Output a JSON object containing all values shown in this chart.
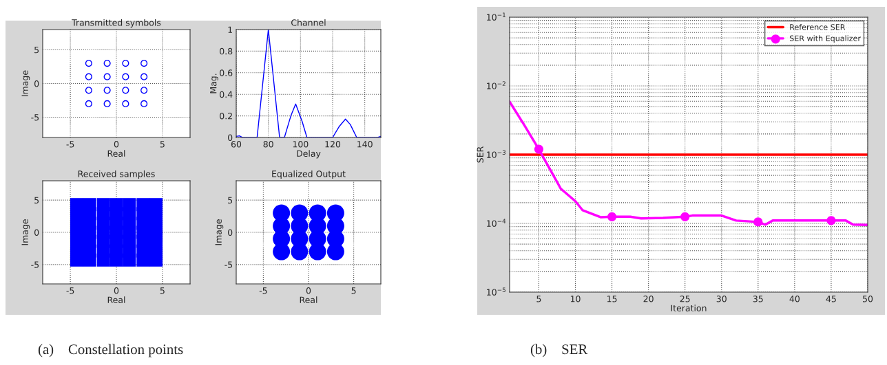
{
  "chart_data": [
    {
      "type": "scatter",
      "title": "Transmitted symbols",
      "xlabel": "Real",
      "ylabel": "Image",
      "xlim": [
        -8,
        8
      ],
      "ylim": [
        -8,
        8
      ],
      "xticks": [
        -5,
        0,
        5
      ],
      "yticks": [
        -5,
        0,
        5
      ],
      "grid": true,
      "marker": "circle",
      "annotations": [
        "(a)    Constellation points"
      ],
      "series": [
        {
          "color": "#0000ff",
          "x": [
            -3,
            -1,
            1,
            3,
            -3,
            -1,
            1,
            3,
            -3,
            -1,
            1,
            3,
            -3,
            -1,
            1,
            3
          ],
          "values": [
            3,
            3,
            3,
            3,
            1,
            1,
            1,
            1,
            -1,
            -1,
            -1,
            -1,
            -3,
            -3,
            -3,
            -3
          ]
        }
      ]
    },
    {
      "type": "line",
      "title": "Channel",
      "xlabel": "Delay",
      "ylabel": "Mag.",
      "xlim": [
        60,
        150
      ],
      "ylim": [
        0,
        1
      ],
      "xticks": [
        60,
        80,
        100,
        120,
        140
      ],
      "yticks": [
        0,
        0.2,
        0.4,
        0.6,
        0.8,
        1
      ],
      "grid": true,
      "series": [
        {
          "color": "#0000ff",
          "x": [
            60,
            62,
            64,
            73,
            76.5,
            80,
            83.5,
            87,
            90,
            94,
            97,
            101,
            104,
            120,
            124,
            128,
            131,
            135,
            148,
            150
          ],
          "values": [
            0.01,
            0.015,
            0,
            0,
            0.5,
            1.0,
            0.5,
            0,
            0,
            0.2,
            0.31,
            0.15,
            0,
            0,
            0.1,
            0.17,
            0.12,
            0,
            0,
            0.01
          ]
        }
      ]
    },
    {
      "type": "scatter",
      "title": "Received samples",
      "xlabel": "Real",
      "ylabel": "Image",
      "xlim": [
        -8,
        8
      ],
      "ylim": [
        -8,
        8
      ],
      "xticks": [
        -5,
        0,
        5
      ],
      "yticks": [
        -5,
        0,
        5
      ],
      "grid": true,
      "marker": "square",
      "series": [
        {
          "color": "#0000ff",
          "x": [
            -4.3,
            -2.9,
            -1.4,
            0,
            1.4,
            2.9,
            4.3,
            -4.3,
            -2.9,
            -1.4,
            0,
            1.4,
            2.9,
            4.3,
            -4.3,
            -2.9,
            -1.4,
            0,
            1.4,
            2.9,
            4.3,
            -4.3,
            -2.9,
            -1.4,
            0,
            1.4,
            2.9,
            4.3,
            -4.3,
            -2.9,
            -1.4,
            0,
            1.4,
            2.9,
            4.3,
            -4.3,
            -2.9,
            -1.4,
            0,
            1.4,
            2.9,
            4.3,
            -4.3,
            -2.9,
            -1.4,
            0,
            1.4,
            2.9,
            4.3
          ],
          "values": [
            4.3,
            4.3,
            4.3,
            4.3,
            4.3,
            4.3,
            4.3,
            2.9,
            2.9,
            2.9,
            2.9,
            2.9,
            2.9,
            2.9,
            1.4,
            1.4,
            1.4,
            1.4,
            1.4,
            1.4,
            1.4,
            0,
            0,
            0,
            0,
            0,
            0,
            0,
            -1.4,
            -1.4,
            -1.4,
            -1.4,
            -1.4,
            -1.4,
            -1.4,
            -2.9,
            -2.9,
            -2.9,
            -2.9,
            -2.9,
            -2.9,
            -2.9,
            -4.3,
            -4.3,
            -4.3,
            -4.3,
            -4.3,
            -4.3,
            -4.3
          ]
        }
      ]
    },
    {
      "type": "scatter",
      "title": "Equalized Output",
      "xlabel": "Real",
      "ylabel": "Image",
      "xlim": [
        -8,
        8
      ],
      "ylim": [
        -8,
        8
      ],
      "xticks": [
        -5,
        0,
        5
      ],
      "yticks": [
        -5,
        0,
        5
      ],
      "grid": true,
      "marker": "circle",
      "series": [
        {
          "color": "#0000ff",
          "x": [
            -3,
            -1,
            1,
            3,
            -3,
            -1,
            1,
            3,
            -3,
            -1,
            1,
            3,
            -3,
            -1,
            1,
            3
          ],
          "values": [
            3,
            3,
            3,
            3,
            1,
            1,
            1,
            1,
            -1,
            -1,
            -1,
            -1,
            -3,
            -3,
            -3,
            -3
          ]
        }
      ]
    },
    {
      "type": "line",
      "xlabel": "Iteration",
      "ylabel": "SER",
      "log": "y",
      "xlim": [
        1,
        50
      ],
      "ylim": [
        1e-05,
        0.1
      ],
      "xticks": [
        5,
        10,
        15,
        20,
        25,
        30,
        35,
        40,
        45,
        50
      ],
      "yticks": [
        {
          "value": 1e-05,
          "label": "10$^{−5}$"
        },
        {
          "value": 0.0001,
          "label": "10$^{−4}$"
        },
        {
          "value": 0.001,
          "label": "10$^{−3}$"
        },
        {
          "value": 0.01,
          "label": "10$^{−2}$"
        },
        {
          "value": 0.1,
          "label": "10$^{−1}$"
        }
      ],
      "grid": true,
      "legend": "top right",
      "annotations": [
        "(b)    SER"
      ],
      "series": [
        {
          "name": "Reference SER",
          "color": "#ff0000",
          "marker": "none",
          "x": [
            1,
            50
          ],
          "values": [
            0.001,
            0.001
          ]
        },
        {
          "name": "SER with Equalizer",
          "color": "#ff00ff",
          "marker": "none",
          "x": [
            1,
            3,
            5,
            8,
            10,
            11,
            13.5,
            15,
            17.5,
            19,
            22,
            25,
            26,
            30,
            32,
            35,
            36,
            37,
            45,
            47,
            48,
            50
          ],
          "values": [
            0.0059,
            0.0027,
            0.0012,
            0.00032,
            0.00021,
            0.000155,
            0.000123,
            0.000125,
            0.000125,
            0.000118,
            0.00012,
            0.000125,
            0.00013,
            0.00013,
            0.00011,
            0.000105,
            9.6e-05,
            0.00011,
            0.00011,
            0.00011,
            9.6e-05,
            9.5e-05
          ]
        },
        {
          "type": "scatter",
          "color": "#ff00ff",
          "marker": "circle",
          "x": [
            5,
            15,
            25,
            35,
            45
          ],
          "values": [
            0.0012,
            0.000125,
            0.000125,
            0.000105,
            0.00011
          ]
        }
      ]
    }
  ]
}
